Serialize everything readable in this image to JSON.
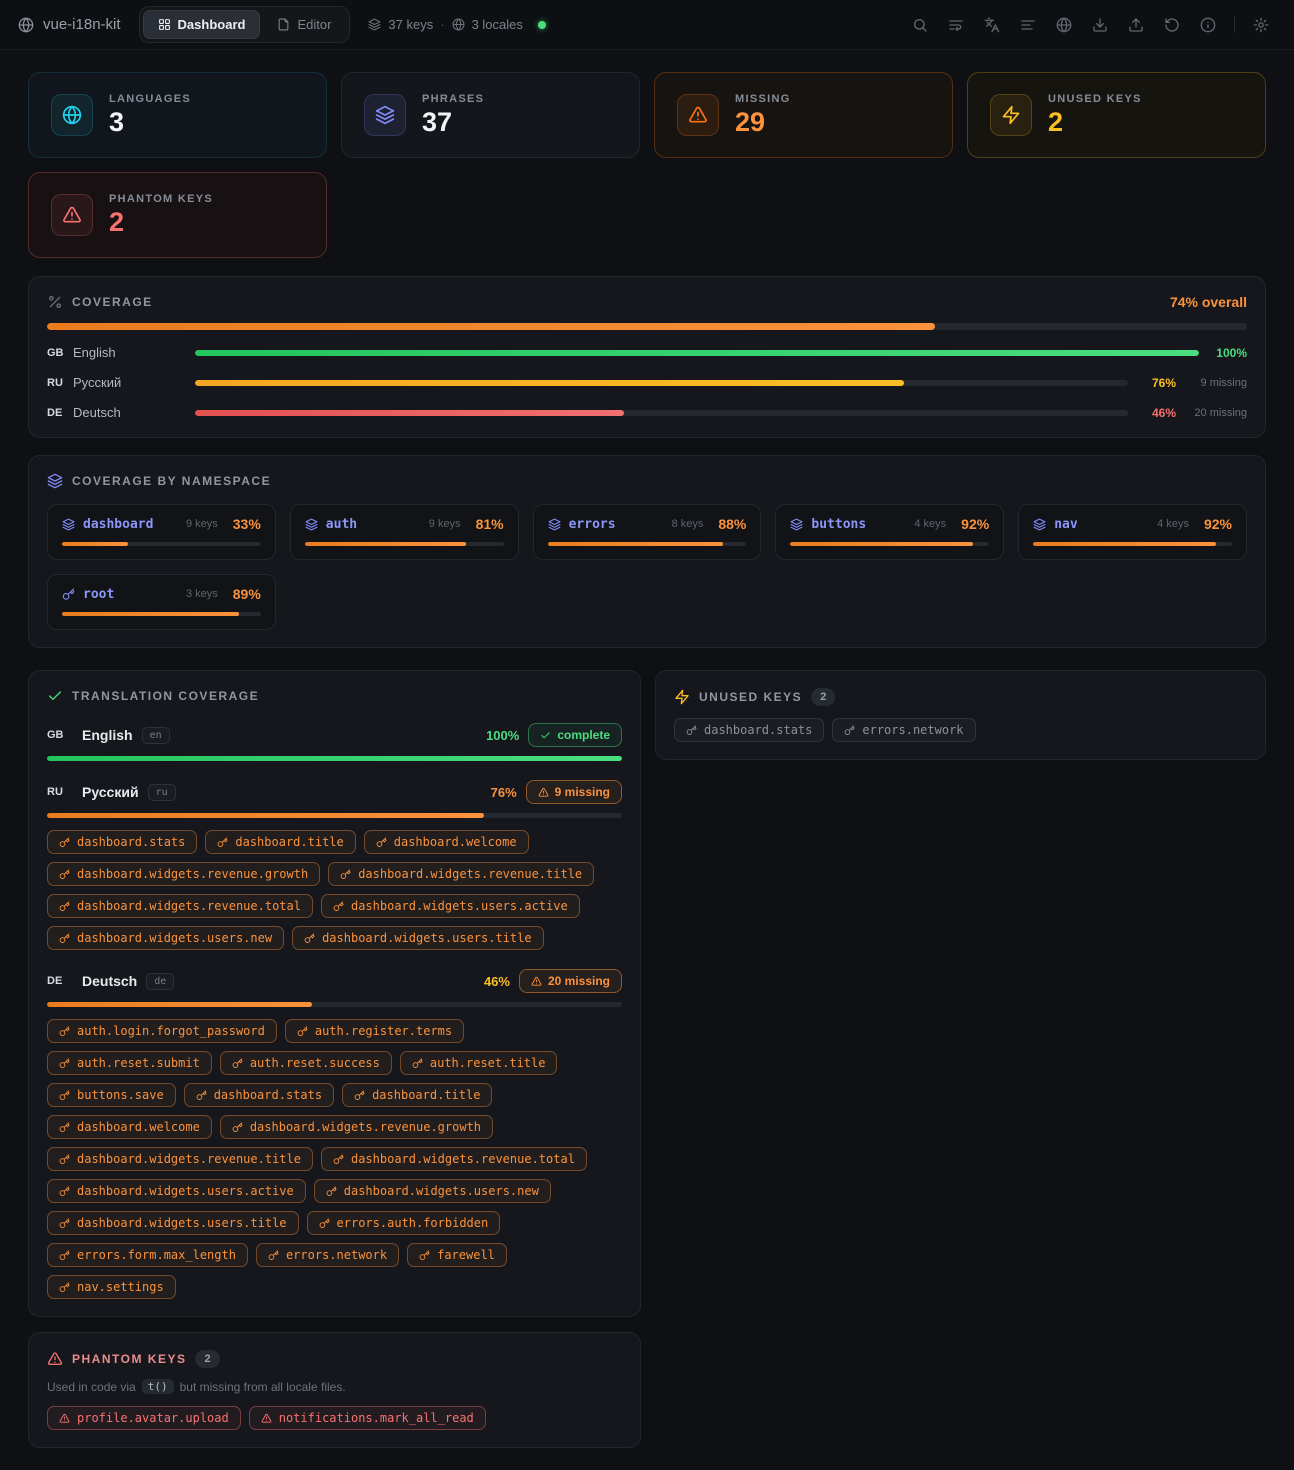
{
  "navbar": {
    "brand": "vue-i18n-kit",
    "tabs": [
      {
        "label": "Dashboard",
        "icon": "layout-grid",
        "active": true
      },
      {
        "label": "Editor",
        "icon": "file",
        "active": false
      }
    ],
    "meta": {
      "keys_label": "37 keys",
      "separator": "·",
      "locales_label": "3 locales",
      "status": "online"
    },
    "toolbar_icons": [
      "search",
      "wrap-text",
      "languages",
      "align-left",
      "globe",
      "download",
      "upload",
      "undo",
      "info",
      "settings"
    ]
  },
  "stats": [
    {
      "type": "languages",
      "label": "LANGUAGES",
      "value": "3",
      "icon": "globe"
    },
    {
      "type": "phrases",
      "label": "PHRASES",
      "value": "37",
      "icon": "layers"
    },
    {
      "type": "missing",
      "label": "MISSING",
      "value": "29",
      "icon": "warning"
    },
    {
      "type": "unused",
      "label": "UNUSED KEYS",
      "value": "2",
      "icon": "zap"
    },
    {
      "type": "phantom",
      "label": "PHANTOM KEYS",
      "value": "2",
      "icon": "warning"
    }
  ],
  "coverage": {
    "title": "COVERAGE",
    "overall_label": "74% overall",
    "overall_pct": 74,
    "rows": [
      {
        "code": "GB",
        "name": "English",
        "pct": 100,
        "pct_label": "100%",
        "missing_label": "",
        "tone": "green"
      },
      {
        "code": "RU",
        "name": "Русский",
        "pct": 76,
        "pct_label": "76%",
        "missing_label": "9 missing",
        "tone": "yellow"
      },
      {
        "code": "DE",
        "name": "Deutsch",
        "pct": 46,
        "pct_label": "46%",
        "missing_label": "20 missing",
        "tone": "red"
      }
    ]
  },
  "namespaces": {
    "title": "COVERAGE BY NAMESPACE",
    "items": [
      {
        "name": "dashboard",
        "icon": "layers",
        "keys_label": "9 keys",
        "pct": 33,
        "pct_label": "33%"
      },
      {
        "name": "auth",
        "icon": "layers",
        "keys_label": "9 keys",
        "pct": 81,
        "pct_label": "81%"
      },
      {
        "name": "errors",
        "icon": "layers",
        "keys_label": "8 keys",
        "pct": 88,
        "pct_label": "88%"
      },
      {
        "name": "buttons",
        "icon": "layers",
        "keys_label": "4 keys",
        "pct": 92,
        "pct_label": "92%"
      },
      {
        "name": "nav",
        "icon": "layers",
        "keys_label": "4 keys",
        "pct": 92,
        "pct_label": "92%"
      },
      {
        "name": "root",
        "icon": "key",
        "keys_label": "3 keys",
        "pct": 89,
        "pct_label": "89%"
      }
    ]
  },
  "translation": {
    "title": "TRANSLATION COVERAGE",
    "locales": [
      {
        "code": "GB",
        "name": "English",
        "tag": "en",
        "pct": 100,
        "pct_label": "100%",
        "pct_color": "#4ade80",
        "bar_tone": "green",
        "status_type": "complete",
        "status_label": "complete",
        "missing_keys": []
      },
      {
        "code": "RU",
        "name": "Русский",
        "tag": "ru",
        "pct": 76,
        "pct_label": "76%",
        "pct_color": "#fb923c",
        "bar_tone": "orange",
        "status_type": "missing",
        "status_label": "9 missing",
        "missing_keys": [
          "dashboard.stats",
          "dashboard.title",
          "dashboard.welcome",
          "dashboard.widgets.revenue.growth",
          "dashboard.widgets.revenue.title",
          "dashboard.widgets.revenue.total",
          "dashboard.widgets.users.active",
          "dashboard.widgets.users.new",
          "dashboard.widgets.users.title"
        ]
      },
      {
        "code": "DE",
        "name": "Deutsch",
        "tag": "de",
        "pct": 46,
        "pct_label": "46%",
        "pct_color": "#fbbf24",
        "bar_tone": "orange",
        "status_type": "missing",
        "status_label": "20 missing",
        "missing_keys": [
          "auth.login.forgot_password",
          "auth.register.terms",
          "auth.reset.submit",
          "auth.reset.success",
          "auth.reset.title",
          "buttons.save",
          "dashboard.stats",
          "dashboard.title",
          "dashboard.welcome",
          "dashboard.widgets.revenue.growth",
          "dashboard.widgets.revenue.title",
          "dashboard.widgets.revenue.total",
          "dashboard.widgets.users.active",
          "dashboard.widgets.users.new",
          "dashboard.widgets.users.title",
          "errors.auth.forbidden",
          "errors.form.max_length",
          "errors.network",
          "farewell",
          "nav.settings"
        ]
      }
    ]
  },
  "unused": {
    "title": "UNUSED KEYS",
    "count": "2",
    "keys": [
      "dashboard.stats",
      "errors.network"
    ]
  },
  "phantom": {
    "title": "PHANTOM KEYS",
    "count": "2",
    "desc_before": "Used in code via",
    "desc_code": "t()",
    "desc_after": "but missing from all locale files.",
    "keys": [
      "profile.avatar.upload",
      "notifications.mark_all_read"
    ]
  },
  "colors": {
    "green": "#4ade80",
    "yellow": "#fbbf24",
    "red": "#f37070",
    "orange": "#fb923c",
    "accent_orange": "#f97316",
    "indigo": "#818cf8",
    "cyan": "#22d3ee",
    "status_dot": "#4ade80"
  }
}
